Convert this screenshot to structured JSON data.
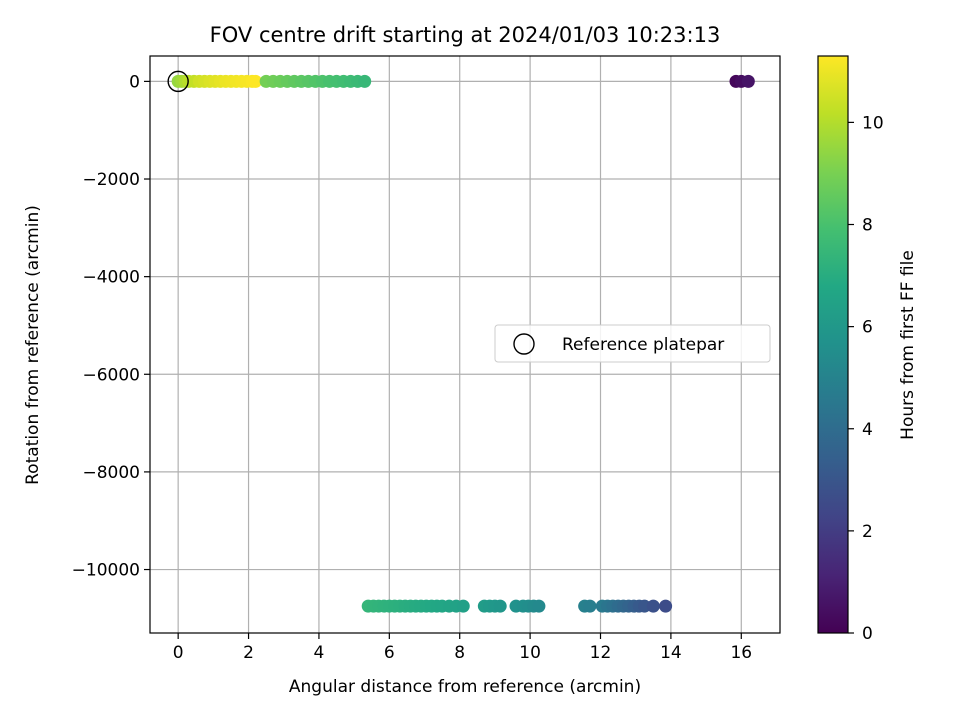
{
  "chart_data": {
    "type": "scatter",
    "title": "FOV centre drift starting at 2024/01/03 10:23:13",
    "xlabel": "Angular distance from reference (arcmin)",
    "ylabel": "Rotation from reference (arcmin)",
    "xlim": [
      -0.8,
      17.1
    ],
    "ylim": [
      -11300,
      520
    ],
    "xticks": [
      0,
      2,
      4,
      6,
      8,
      10,
      12,
      14,
      16
    ],
    "xtick_labels": [
      "0",
      "2",
      "4",
      "6",
      "8",
      "10",
      "12",
      "14",
      "16"
    ],
    "yticks": [
      0,
      -2000,
      -4000,
      -6000,
      -8000,
      -10000
    ],
    "ytick_labels": [
      "0",
      "−2000",
      "−4000",
      "−6000",
      "−8000",
      "−10000"
    ],
    "grid": true,
    "legend": {
      "placement": "center-right",
      "entries": [
        "Reference platepar"
      ]
    },
    "colorbar": {
      "label": "Hours from first FF file",
      "colormap": "viridis",
      "range": [
        0,
        11.3
      ],
      "ticks": [
        0,
        2,
        4,
        6,
        8,
        10
      ],
      "tick_labels": [
        "0",
        "2",
        "4",
        "6",
        "8",
        "10"
      ]
    },
    "reference_point": {
      "x": 0,
      "y": 0
    },
    "series": [
      {
        "x": [
          0.0,
          0.1,
          0.2,
          0.3,
          0.45,
          0.6,
          0.75,
          0.9,
          1.05,
          1.2,
          1.35,
          1.5,
          1.65,
          1.8,
          1.95,
          2.1,
          2.2
        ],
        "y": [
          0,
          0,
          0,
          0,
          0,
          0,
          0,
          0,
          0,
          0,
          0,
          0,
          0,
          0,
          0,
          0,
          0
        ],
        "c": [
          9.5,
          9.7,
          9.9,
          10.1,
          10.3,
          10.5,
          10.6,
          10.7,
          10.8,
          10.9,
          11.0,
          11.05,
          11.1,
          11.15,
          11.2,
          11.25,
          11.3
        ]
      },
      {
        "x": [
          2.5,
          2.7,
          2.9,
          3.1,
          3.3,
          3.5,
          3.7,
          3.9,
          4.1,
          4.3,
          4.5,
          4.7,
          4.9,
          5.1,
          5.3
        ],
        "y": [
          0,
          0,
          0,
          0,
          0,
          0,
          0,
          0,
          0,
          0,
          0,
          0,
          0,
          0,
          0
        ],
        "c": [
          8.9,
          8.8,
          8.7,
          8.6,
          8.5,
          8.4,
          8.3,
          8.2,
          8.1,
          8.0,
          7.9,
          7.8,
          7.7,
          7.6,
          7.5
        ]
      },
      {
        "x": [
          15.85,
          16.0,
          16.2
        ],
        "y": [
          0,
          0,
          0
        ],
        "c": [
          0.2,
          0.4,
          0.6
        ]
      },
      {
        "x": [
          5.4,
          5.55,
          5.7,
          5.85,
          6.0,
          6.15,
          6.3,
          6.45,
          6.6,
          6.75,
          6.9,
          7.05,
          7.2,
          7.35,
          7.5,
          7.7,
          7.9,
          8.1,
          8.7,
          8.85,
          9.0,
          9.15,
          9.6,
          9.8,
          9.95,
          10.1,
          10.25
        ],
        "y": [
          -10750,
          -10750,
          -10750,
          -10750,
          -10750,
          -10750,
          -10750,
          -10750,
          -10750,
          -10750,
          -10750,
          -10750,
          -10750,
          -10750,
          -10750,
          -10750,
          -10750,
          -10750,
          -10750,
          -10750,
          -10750,
          -10750,
          -10750,
          -10750,
          -10750,
          -10750,
          -10750
        ],
        "c": [
          7.4,
          7.35,
          7.3,
          7.25,
          7.2,
          7.15,
          7.1,
          7.05,
          7.0,
          6.95,
          6.9,
          6.85,
          6.8,
          6.75,
          6.7,
          6.6,
          6.5,
          6.4,
          6.2,
          6.1,
          6.0,
          5.9,
          5.7,
          5.6,
          5.5,
          5.4,
          5.3
        ]
      },
      {
        "x": [
          11.55,
          11.7,
          12.05,
          12.2,
          12.35,
          12.5,
          12.65,
          12.8,
          12.95,
          13.1,
          13.25,
          13.5,
          13.85
        ],
        "y": [
          -10750,
          -10750,
          -10750,
          -10750,
          -10750,
          -10750,
          -10750,
          -10750,
          -10750,
          -10750,
          -10750,
          -10750,
          -10750
        ],
        "c": [
          4.9,
          4.8,
          4.6,
          4.4,
          4.2,
          4.0,
          3.8,
          3.6,
          3.4,
          3.2,
          3.0,
          2.8,
          2.6
        ]
      }
    ]
  }
}
